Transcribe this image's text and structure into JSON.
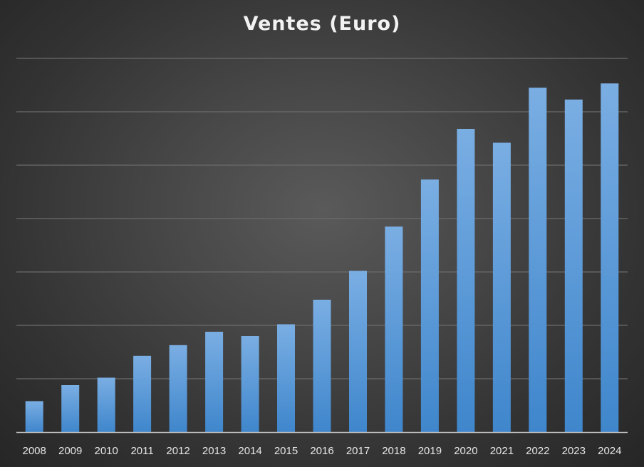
{
  "chart_data": {
    "type": "bar",
    "title": "Ventes (Euro)",
    "xlabel": "",
    "ylabel": "",
    "categories": [
      "2008",
      "2009",
      "2010",
      "2011",
      "2012",
      "2013",
      "2014",
      "2015",
      "2016",
      "2017",
      "2018",
      "2019",
      "2020",
      "2021",
      "2022",
      "2023",
      "2024"
    ],
    "series": [
      {
        "values": [
          0.58,
          0.88,
          1.02,
          1.43,
          1.63,
          1.88,
          1.8,
          2.02,
          2.48,
          3.02,
          3.85,
          4.73,
          5.68,
          5.42,
          6.45,
          6.23,
          6.53
        ]
      }
    ],
    "ylim": [
      0,
      7
    ],
    "y_tick_labels_visible": false,
    "grid": true,
    "legend": "none",
    "colors": {
      "bar_top": "#7aaee3",
      "bar_bottom": "#3f86cc",
      "gridline": "#6b6b6b",
      "axis": "#bfbfbf",
      "text": "#e6e6e6"
    }
  }
}
